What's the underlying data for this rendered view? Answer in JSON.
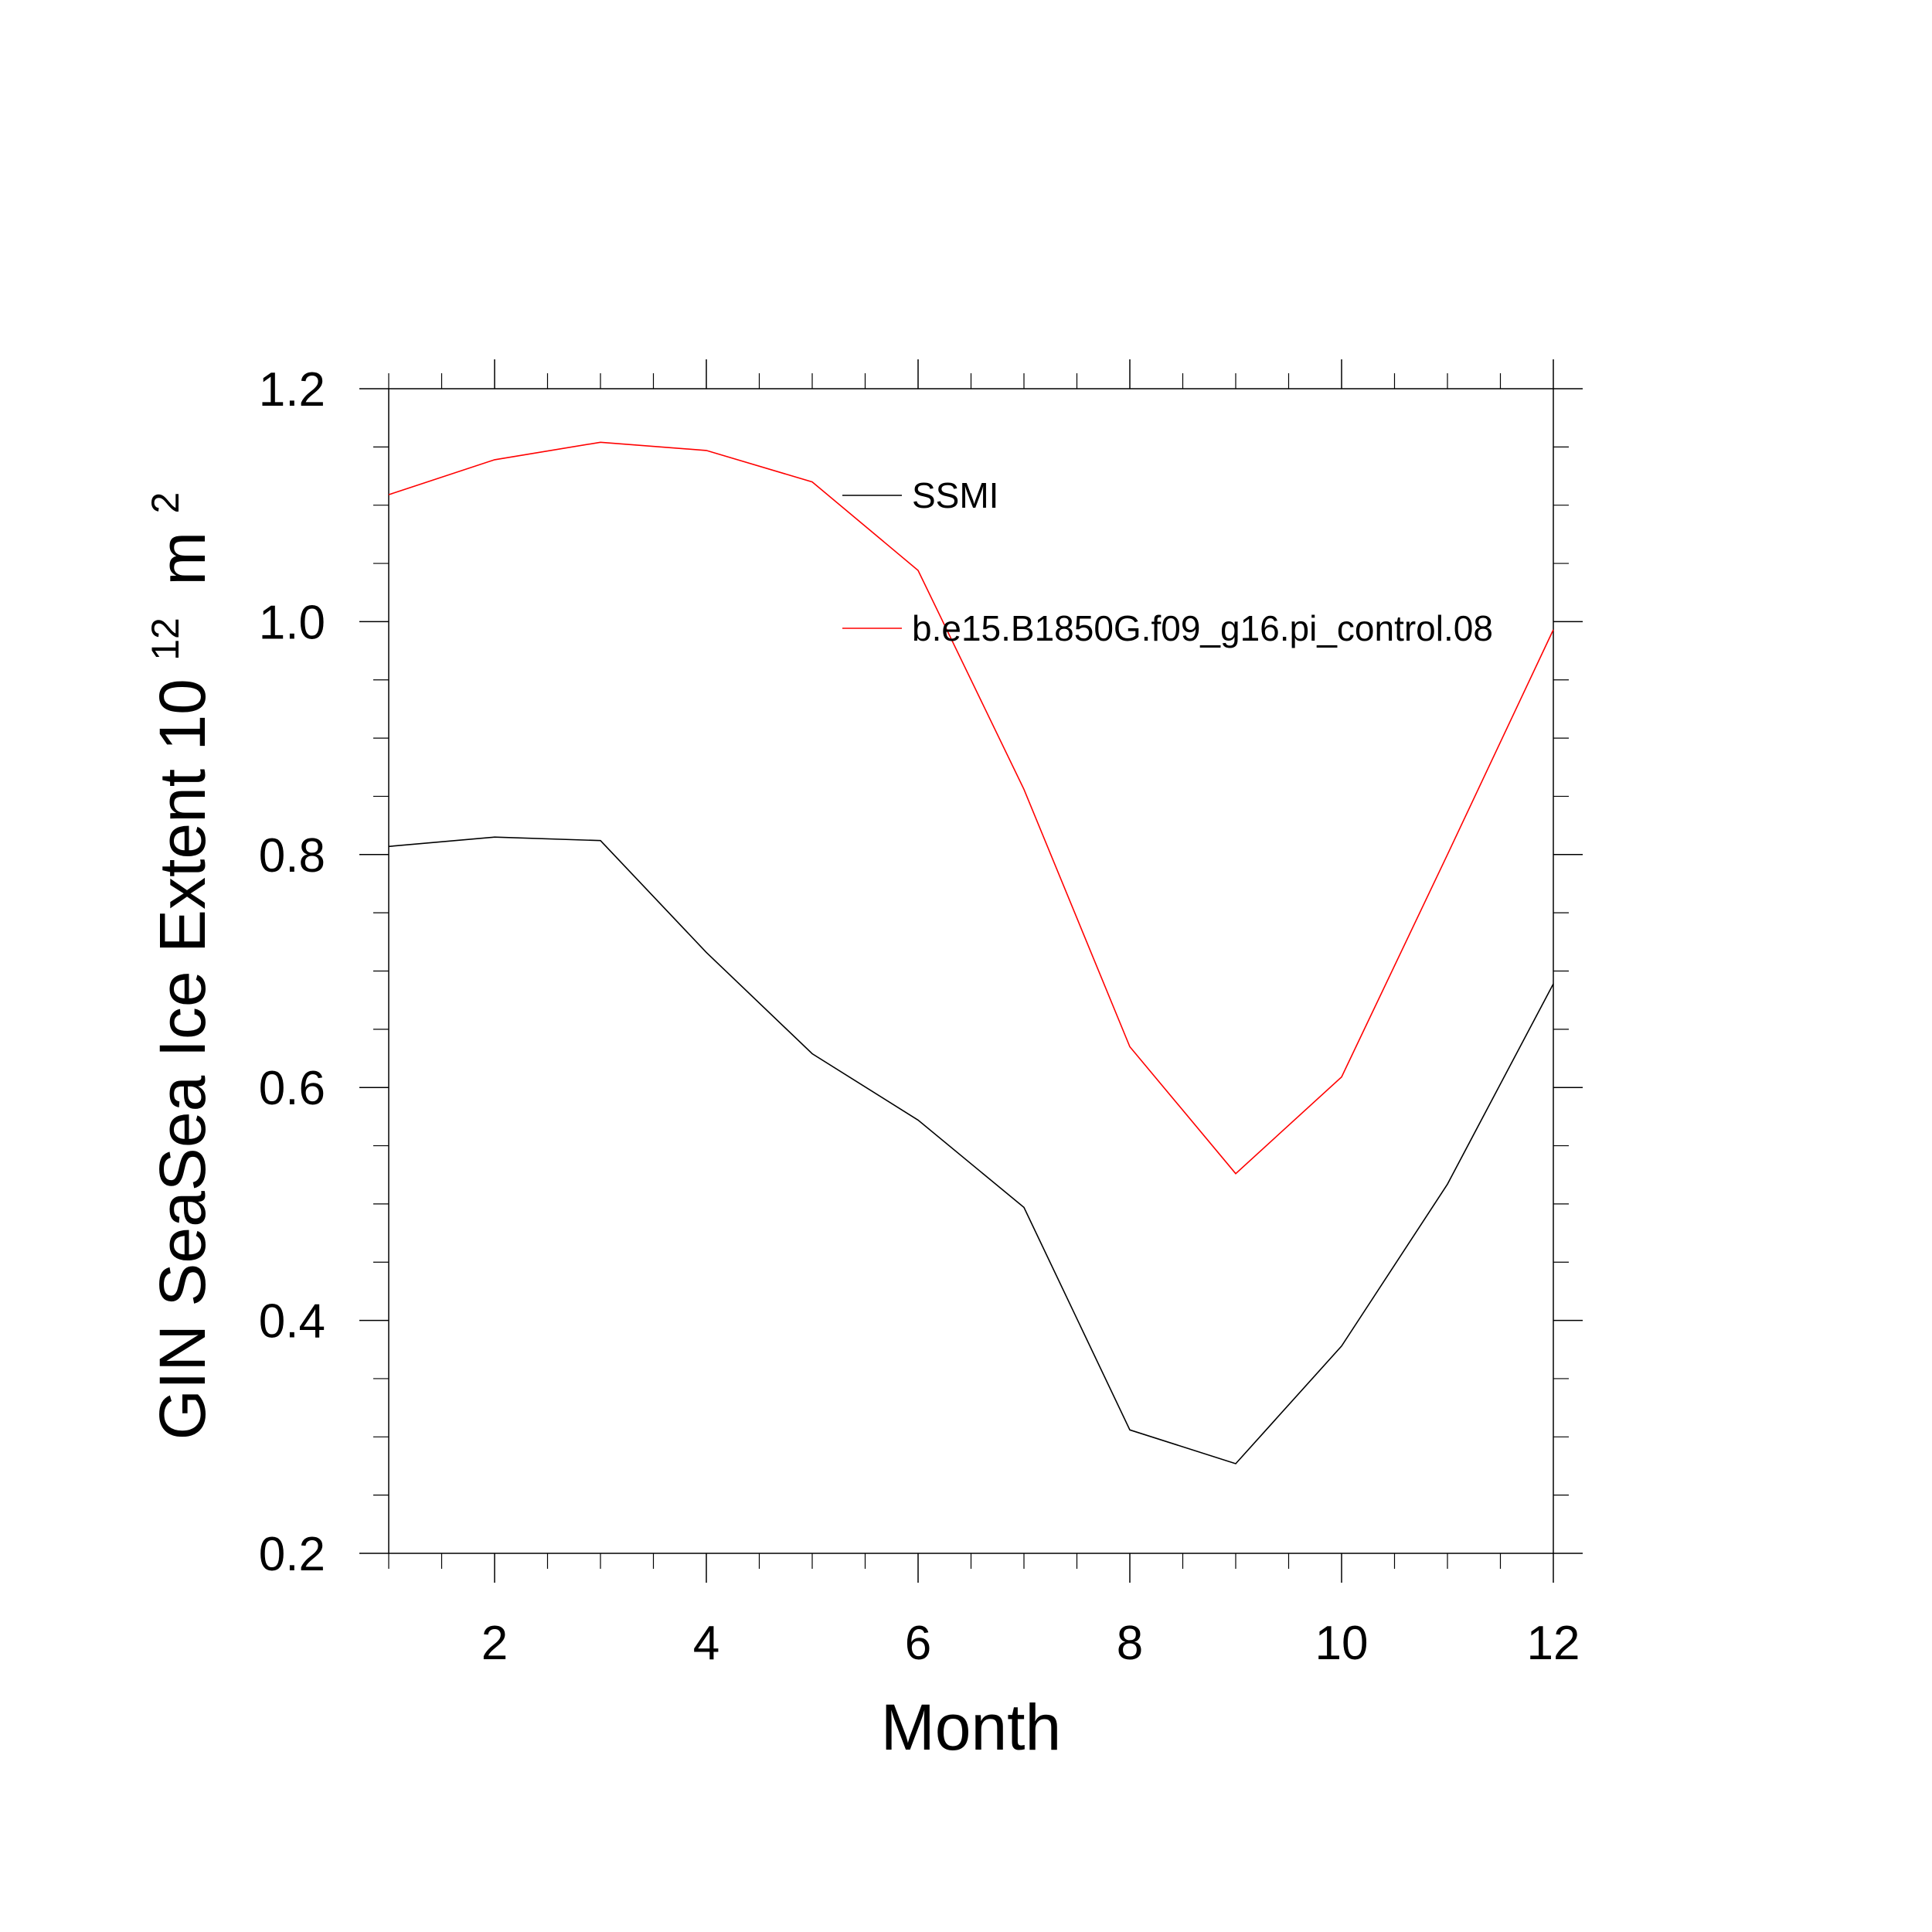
{
  "chart_data": {
    "type": "line",
    "xlabel": "Month",
    "ylabel_main": "GIN SeaSea Ice Extent 10",
    "ylabel_exponent": "12",
    "ylabel_unit": "m",
    "ylabel_unit_exponent": "2",
    "xlim": [
      1,
      12
    ],
    "ylim": [
      0.2,
      1.2
    ],
    "x_ticks": [
      2,
      4,
      6,
      8,
      10,
      12
    ],
    "x_tick_labels": [
      "2",
      "4",
      "6",
      "8",
      "10",
      "12"
    ],
    "y_ticks": [
      0.2,
      0.4,
      0.6,
      0.8,
      1.0,
      1.2
    ],
    "y_tick_labels": [
      "0.2",
      "0.4",
      "0.6",
      "0.8",
      "1.0",
      "1.2"
    ],
    "x": [
      1,
      2,
      3,
      4,
      5,
      6,
      7,
      8,
      9,
      10,
      11,
      12
    ],
    "series": [
      {
        "name": "SSMI",
        "color": "#000000",
        "values": [
          0.807,
          0.815,
          0.812,
          0.716,
          0.629,
          0.572,
          0.497,
          0.306,
          0.277,
          0.378,
          0.517,
          0.689
        ]
      },
      {
        "name": "b.e15.B1850G.f09_g16.pi_control.08",
        "color": "#ff0000",
        "values": [
          1.109,
          1.139,
          1.154,
          1.147,
          1.12,
          1.044,
          0.856,
          0.635,
          0.526,
          0.609,
          0.8,
          0.993
        ]
      }
    ],
    "legend_position": "top-right",
    "grid": false
  }
}
